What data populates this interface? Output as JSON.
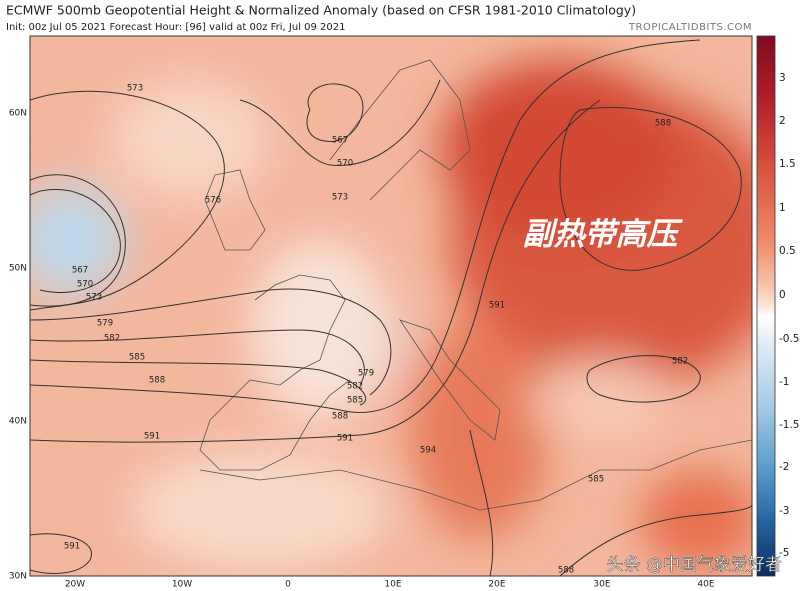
{
  "header": {
    "title": "ECMWF 500mb Geopotential Height & Normalized Anomaly (based on CFSR 1981-2010 Climatology)",
    "subtitle": "Init: 00z Jul 05 2021   Forecast Hour: [96]   valid at 00z Fri, Jul 09 2021",
    "source": "TROPICALTIDBITS.COM"
  },
  "map": {
    "lat_labels": [
      "60N",
      "50N",
      "40N",
      "30N"
    ],
    "lon_labels": [
      "20W",
      "10W",
      "0",
      "10E",
      "20E",
      "30E",
      "40E"
    ],
    "contour_labels": [
      "573",
      "567",
      "570",
      "573",
      "576",
      "567",
      "570",
      "573",
      "579",
      "582",
      "585",
      "588",
      "591",
      "591",
      "579",
      "582",
      "585",
      "588",
      "591",
      "594",
      "591",
      "588",
      "582",
      "585",
      "588"
    ],
    "annotation": "副热带高压"
  },
  "colorbar": {
    "labels": [
      "3",
      "2",
      "1.5",
      "1",
      "0.5",
      "0",
      "-0.5",
      "-1",
      "-1.5",
      "-2",
      "-3",
      "-5"
    ]
  },
  "watermark": "头条 @中国气象爱好者"
}
